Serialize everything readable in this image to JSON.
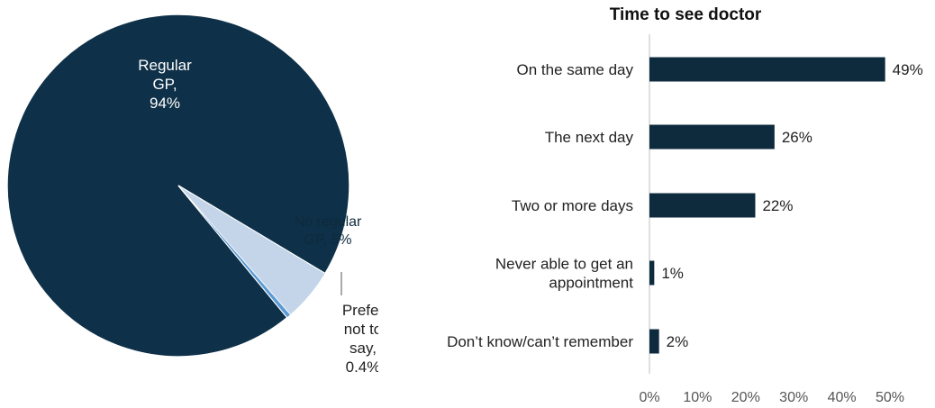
{
  "chart_data": [
    {
      "type": "pie",
      "slices": [
        {
          "label_lines": [
            "Regular",
            "GP,",
            "94%"
          ],
          "value": 94,
          "color": "#0e3048"
        },
        {
          "label_lines": [
            "No regular",
            "GP, 5%"
          ],
          "value": 5,
          "color": "#c4d5ea"
        },
        {
          "label_lines": [
            "Prefer",
            "not to",
            "say,",
            "0.4%"
          ],
          "value": 0.4,
          "color": "#5b9bd5"
        }
      ]
    },
    {
      "type": "bar",
      "orientation": "horizontal",
      "title": "Time to see doctor",
      "categories": [
        [
          "On the same day"
        ],
        [
          "The next day"
        ],
        [
          "Two or more days"
        ],
        [
          "Never able to get an",
          "appointment"
        ],
        [
          "Don’t know/can’t remember"
        ]
      ],
      "values": [
        49,
        26,
        22,
        1,
        2
      ],
      "data_labels": [
        "49%",
        "26%",
        "22%",
        "1%",
        "2%"
      ],
      "xlim": [
        0,
        50
      ],
      "xticks": [
        0,
        10,
        20,
        30,
        40,
        50
      ],
      "xtick_labels": [
        "0%",
        "10%",
        "20%",
        "30%",
        "40%",
        "50%"
      ],
      "bar_color": "#0e2a3d",
      "grid": false
    }
  ]
}
